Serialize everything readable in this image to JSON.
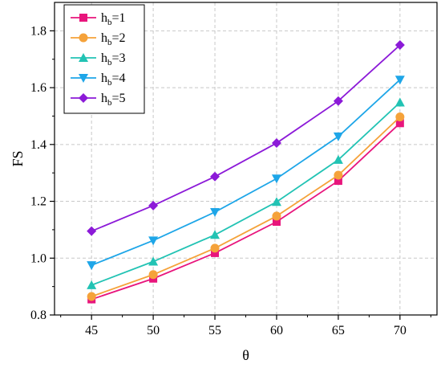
{
  "chart_data": {
    "type": "line",
    "xlabel": "θ",
    "ylabel": "FS",
    "x": [
      45,
      50,
      55,
      60,
      65,
      70
    ],
    "xlim": [
      42,
      73
    ],
    "ylim": [
      0.8,
      1.9
    ],
    "x_ticks": [
      "45",
      "50",
      "55",
      "60",
      "65",
      "70"
    ],
    "y_ticks": [
      "0.8",
      "1.0",
      "1.2",
      "1.4",
      "1.6",
      "1.8"
    ],
    "grid": true,
    "legend_position": "top-left",
    "series": [
      {
        "name_main": "h",
        "name_sub": "b",
        "name_rest": "=1",
        "color": "#e8157c",
        "marker": "square",
        "values": [
          0.855,
          0.928,
          1.018,
          1.128,
          1.272,
          1.475
        ]
      },
      {
        "name_main": "h",
        "name_sub": "b",
        "name_rest": "=2",
        "color": "#f5a23a",
        "marker": "circle",
        "values": [
          0.865,
          0.942,
          1.035,
          1.148,
          1.292,
          1.497
        ]
      },
      {
        "name_main": "h",
        "name_sub": "b",
        "name_rest": "=3",
        "color": "#22c3b4",
        "marker": "triangle-up",
        "values": [
          0.905,
          0.988,
          1.082,
          1.198,
          1.346,
          1.548
        ]
      },
      {
        "name_main": "h",
        "name_sub": "b",
        "name_rest": "=4",
        "color": "#1ea6e8",
        "marker": "triangle-down",
        "values": [
          0.975,
          1.062,
          1.162,
          1.28,
          1.428,
          1.628
        ]
      },
      {
        "name_main": "h",
        "name_sub": "b",
        "name_rest": "=5",
        "color": "#8c1ad8",
        "marker": "diamond",
        "values": [
          1.095,
          1.185,
          1.287,
          1.405,
          1.553,
          1.75
        ]
      }
    ]
  }
}
